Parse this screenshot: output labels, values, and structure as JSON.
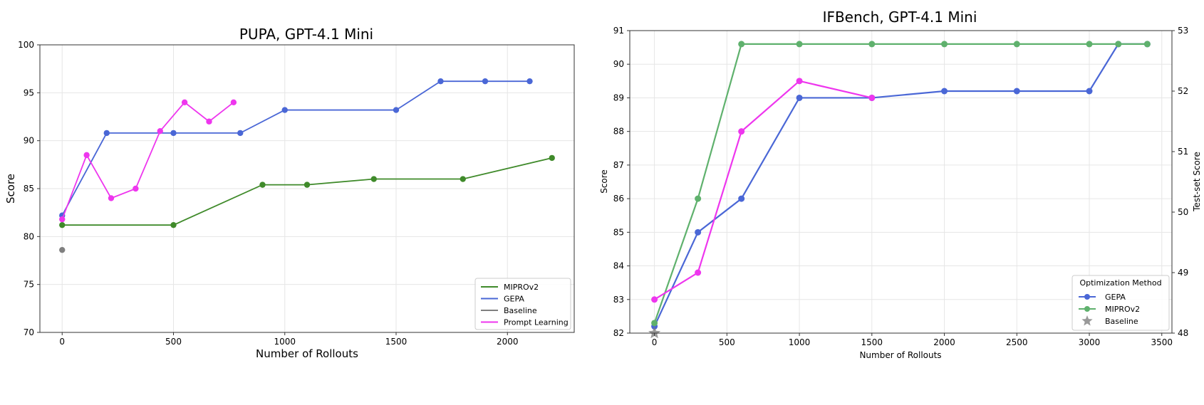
{
  "colors": {
    "mipro_left": "#3f8a2a",
    "gepa": "#4a67d6",
    "baseline": "#7f7f7f",
    "prompt_learning": "#ee36ee",
    "mipro_right": "#5fb16d",
    "grid": "#e6e6e6",
    "frame": "#333333"
  },
  "chart_data": [
    {
      "type": "line",
      "title": "PUPA, GPT-4.1 Mini",
      "xlabel": "Number of Rollouts",
      "ylabel": "Score",
      "xlim": [
        -100,
        2300
      ],
      "ylim": [
        70,
        100
      ],
      "xticks": [
        0,
        500,
        1000,
        1500,
        2000
      ],
      "yticks": [
        70,
        75,
        80,
        85,
        90,
        95,
        100
      ],
      "grid": true,
      "legend_position": "bottom-right",
      "series": [
        {
          "name": "MIPROv2",
          "color_key": "mipro_left",
          "marker": "circle",
          "x": [
            0,
            500,
            900,
            1100,
            1400,
            1800,
            2200
          ],
          "y": [
            81.2,
            81.2,
            85.4,
            85.4,
            86.0,
            86.0,
            88.2
          ]
        },
        {
          "name": "GEPA",
          "color_key": "gepa",
          "marker": "circle",
          "x": [
            0,
            200,
            500,
            800,
            1000,
            1500,
            1700,
            1900,
            2100
          ],
          "y": [
            82.2,
            90.8,
            90.8,
            90.8,
            93.2,
            93.2,
            96.2,
            96.2,
            96.2
          ]
        },
        {
          "name": "Baseline",
          "color_key": "baseline",
          "marker": "circle",
          "x": [
            0
          ],
          "y": [
            78.6
          ]
        },
        {
          "name": "Prompt Learning",
          "color_key": "prompt_learning",
          "marker": "circle",
          "x": [
            0,
            110,
            220,
            330,
            440,
            550,
            660,
            770
          ],
          "y": [
            81.8,
            88.5,
            84.0,
            85.0,
            91.0,
            94.0,
            92.0,
            94.0
          ]
        }
      ]
    },
    {
      "type": "line",
      "title": "IFBench, GPT-4.1 Mini",
      "xlabel": "Number of Rollouts",
      "ylabel": "Score",
      "y2label": "Test-set Score",
      "xlim": [
        -170,
        3570
      ],
      "ylim": [
        82,
        91
      ],
      "y2lim": [
        48,
        53
      ],
      "xticks": [
        0,
        500,
        1000,
        1500,
        2000,
        2500,
        3000,
        3500
      ],
      "yticks": [
        82,
        83,
        84,
        85,
        86,
        87,
        88,
        89,
        90,
        91
      ],
      "y2ticks": [
        48,
        49,
        50,
        51,
        52,
        53
      ],
      "grid": true,
      "legend_title": "Optimization Method",
      "legend_position": "bottom-right",
      "legend_entries": [
        "GEPA",
        "MIPROv2",
        "Baseline"
      ],
      "series": [
        {
          "name": "GEPA",
          "color_key": "gepa",
          "marker": "circle",
          "x": [
            0,
            300,
            600,
            1000,
            1500,
            2000,
            2500,
            3000,
            3200,
            3400
          ],
          "y": [
            82.2,
            85.0,
            86.0,
            89.0,
            89.0,
            89.2,
            89.2,
            89.2,
            90.6,
            90.6
          ]
        },
        {
          "name": "MIPROv2",
          "color_key": "mipro_right",
          "marker": "circle",
          "x": [
            0,
            300,
            600,
            1000,
            1500,
            2000,
            2500,
            3000,
            3200,
            3400
          ],
          "y": [
            82.3,
            86.0,
            90.6,
            90.6,
            90.6,
            90.6,
            90.6,
            90.6,
            90.6,
            90.6
          ]
        },
        {
          "name": "Prompt Learning",
          "color_key": "prompt_learning",
          "marker": "circle",
          "in_legend": false,
          "x": [
            0,
            300,
            600,
            1000,
            1500
          ],
          "y": [
            83.0,
            83.8,
            88.0,
            89.5,
            89.0
          ]
        },
        {
          "name": "Baseline",
          "color_key": "baseline",
          "marker": "star",
          "x": [
            0
          ],
          "y": [
            82.0
          ]
        }
      ]
    }
  ]
}
